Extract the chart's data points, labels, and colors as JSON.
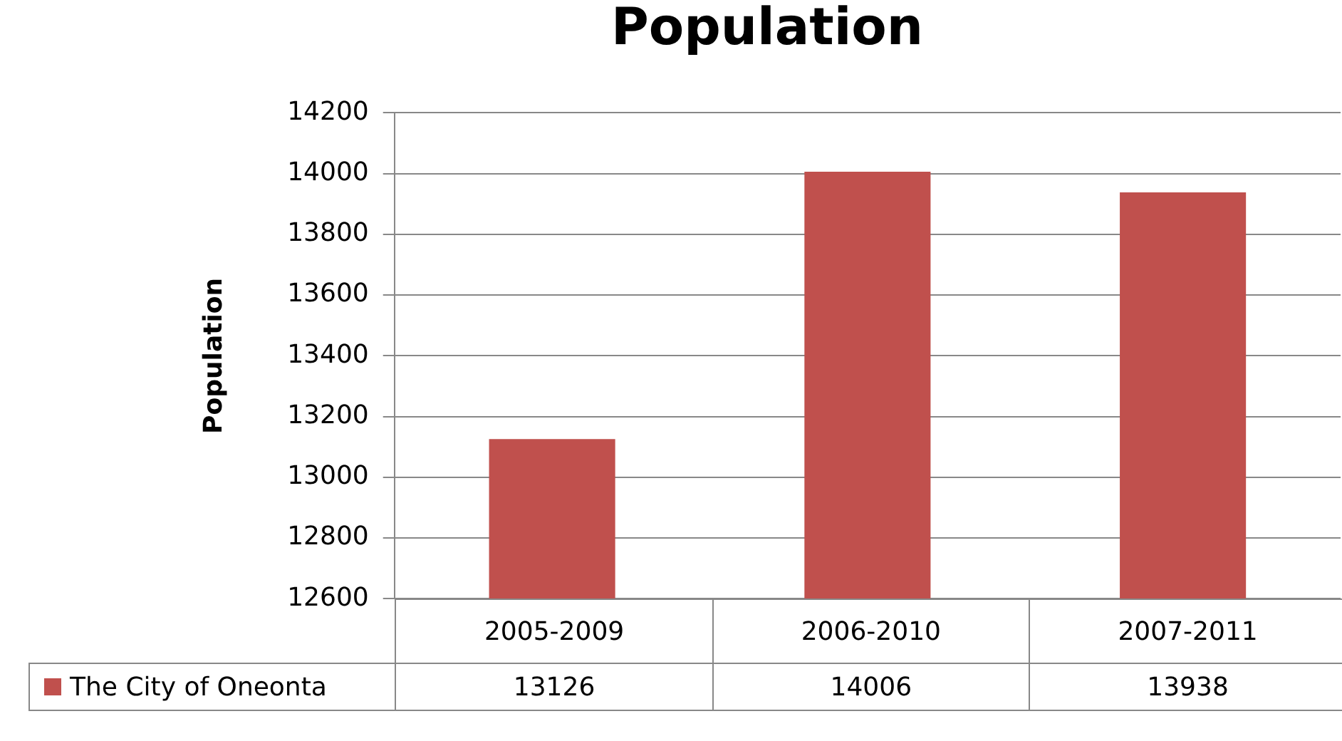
{
  "chart_data": {
    "type": "bar",
    "title": "Population",
    "ylabel": "Population",
    "categories": [
      "2005-2009",
      "2006-2010",
      "2007-2011"
    ],
    "series": [
      {
        "name": "The City of Oneonta",
        "color": "#c0504d",
        "values": [
          13126,
          14006,
          13938
        ]
      }
    ],
    "ylim": [
      12600,
      14200
    ],
    "yticks": [
      12600,
      12800,
      13000,
      13200,
      13400,
      13600,
      13800,
      14000,
      14200
    ],
    "grid": "y",
    "legend": "bottom",
    "data_labels": true
  }
}
